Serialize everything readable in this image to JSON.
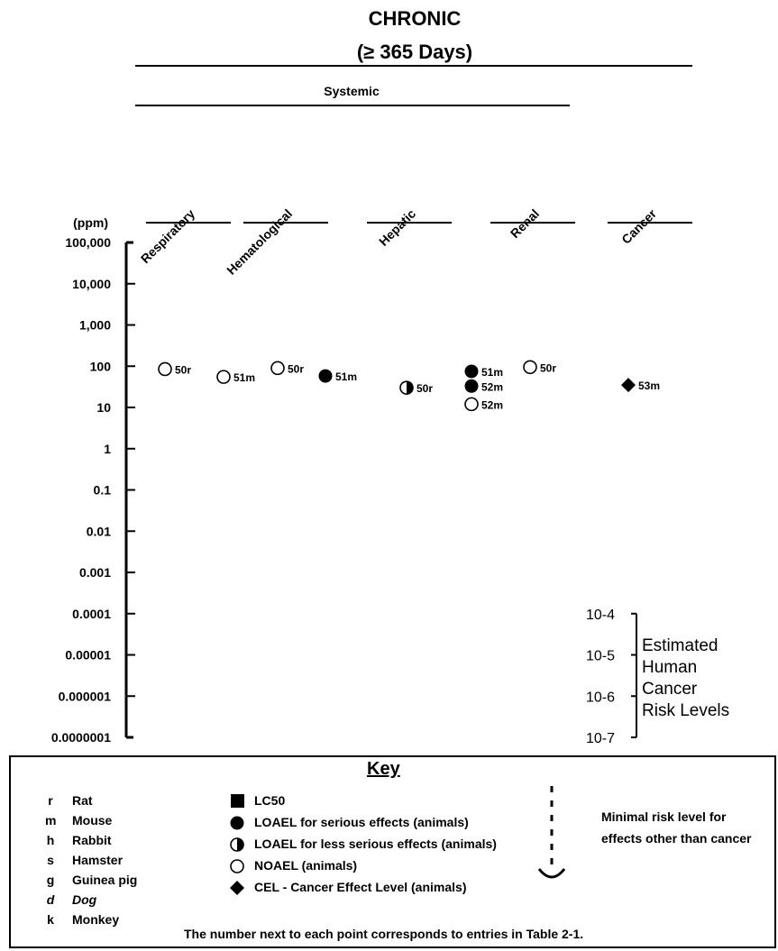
{
  "header": {
    "title": "CHRONIC",
    "subtitle": "(≥ 365 Days)",
    "group_label": "Systemic"
  },
  "chart_data": {
    "type": "scatter",
    "y_scale": "log",
    "y_unit_label": "(ppm)",
    "y_ticks": [
      "100,000",
      "10,000",
      "1,000",
      "100",
      "10",
      "1",
      "0.1",
      "0.01",
      "0.001",
      "0.0001",
      "0.00001",
      "0.000001",
      "0.0000001"
    ],
    "y_tick_values": [
      100000,
      10000,
      1000,
      100,
      10,
      1,
      0.1,
      0.01,
      0.001,
      0.0001,
      1e-05,
      1e-06,
      1e-07
    ],
    "ylim": [
      1e-07,
      100000
    ],
    "categories": [
      "Respiratory",
      "Hematological",
      "Hepatic",
      "Renal",
      "Cancer"
    ],
    "points": [
      {
        "category": "Respiratory",
        "slot": 0,
        "y": 85,
        "marker": "noael",
        "label": "50r"
      },
      {
        "category": "Hematological",
        "slot": 0,
        "y": 55,
        "marker": "noael",
        "label": "51m"
      },
      {
        "category": "Hematological",
        "slot": 1,
        "y": 90,
        "marker": "noael",
        "label": "50r"
      },
      {
        "category": "Hepatic",
        "slot": 0,
        "y": 58,
        "marker": "loael_serious",
        "label": "51m"
      },
      {
        "category": "Hepatic",
        "slot": 1,
        "y": 30,
        "marker": "loael_less",
        "label": "50r"
      },
      {
        "category": "Renal",
        "slot": 0,
        "y": 75,
        "marker": "loael_serious",
        "label": "51m"
      },
      {
        "category": "Renal",
        "slot": 0,
        "y": 33,
        "marker": "loael_serious",
        "label": "52m"
      },
      {
        "category": "Renal",
        "slot": 0,
        "y": 12,
        "marker": "noael",
        "label": "52m"
      },
      {
        "category": "Renal",
        "slot": 1,
        "y": 95,
        "marker": "noael",
        "label": "50r"
      },
      {
        "category": "Cancer",
        "slot": 0,
        "y": 35,
        "marker": "cel",
        "label": "53m"
      }
    ],
    "risk_scale": {
      "ticks": [
        "10-4",
        "10-5",
        "10-6",
        "10-7"
      ],
      "label_lines": [
        "Estimated",
        "Human",
        "Cancer",
        "Risk Levels"
      ]
    }
  },
  "key": {
    "title": "Key",
    "species": [
      {
        "code": "r",
        "name": "Rat",
        "italic": false
      },
      {
        "code": "m",
        "name": "Mouse",
        "italic": false
      },
      {
        "code": "h",
        "name": "Rabbit",
        "italic": false
      },
      {
        "code": "s",
        "name": "Hamster",
        "italic": false
      },
      {
        "code": "g",
        "name": "Guinea pig",
        "italic": false
      },
      {
        "code": "d",
        "name": "Dog",
        "italic": true
      },
      {
        "code": "k",
        "name": "Monkey",
        "italic": false
      }
    ],
    "legend": [
      {
        "marker": "lc50",
        "label": "LC50"
      },
      {
        "marker": "loael_serious",
        "label": "LOAEL for serious effects (animals)"
      },
      {
        "marker": "loael_less",
        "label": "LOAEL for less serious effects (animals)"
      },
      {
        "marker": "noael",
        "label": "NOAEL (animals)"
      },
      {
        "marker": "cel",
        "label": "CEL - Cancer Effect Level (animals)"
      }
    ],
    "mrl_lines": [
      "Minimal risk level for",
      "effects other than cancer"
    ],
    "footnote": "The number next to each point corresponds to entries in Table 2-1."
  }
}
